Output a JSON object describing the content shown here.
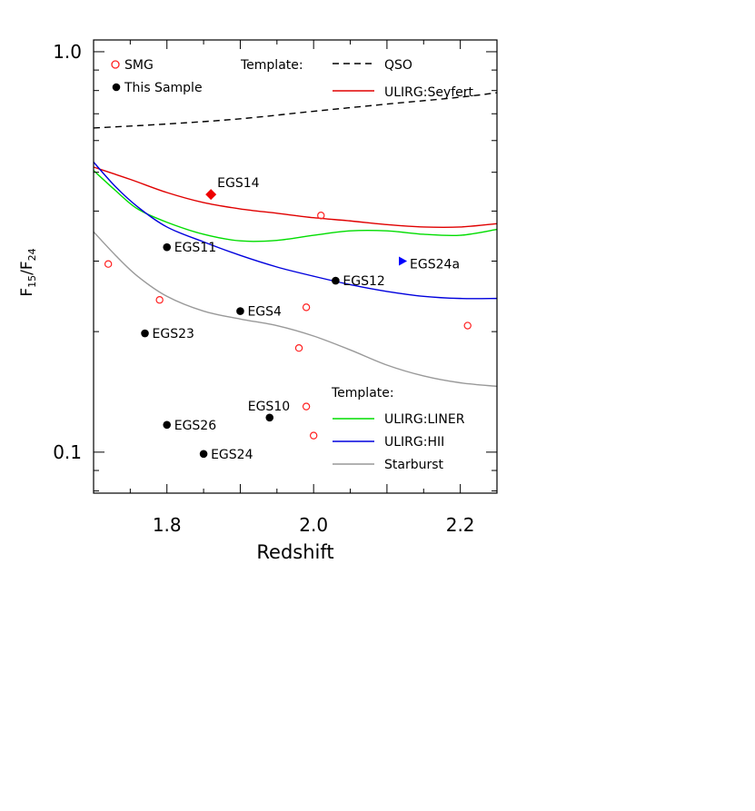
{
  "chart_data": {
    "type": "scatter",
    "xlabel": "Redshift",
    "ylabel": {
      "base": "F",
      "num_sub": "15",
      "den_base": "F",
      "den_sub": "24"
    },
    "xlim": [
      1.7,
      2.25
    ],
    "ylim": [
      0.079,
      1.07
    ],
    "yscale": "log",
    "x_ticks": [
      {
        "value": 1.8,
        "label": "1.8"
      },
      {
        "value": 2.0,
        "label": "2.0"
      },
      {
        "value": 2.2,
        "label": "2.2"
      }
    ],
    "y_ticks": [
      {
        "value": 1.0,
        "label": "1.0"
      },
      {
        "value": 0.1,
        "label": "0.1"
      }
    ],
    "colors": {
      "smg": "#ff2020",
      "sample": "#000000",
      "qso": "#000000",
      "seyfert": "#e00000",
      "liner": "#00dd00",
      "hii": "#0000dd",
      "starburst": "#999999",
      "egs24a": "#0000ff",
      "egs14": "#ee0000"
    },
    "legend_top": {
      "smg_label": "SMG",
      "sample_label": "This Sample",
      "template_title": "Template:",
      "qso_label": "QSO",
      "seyfert_label": "ULIRG:Seyfert"
    },
    "legend_bottom": {
      "template_title": "Template:",
      "liner_label": "ULIRG:LINER",
      "hii_label": "ULIRG:HII",
      "starburst_label": "Starburst"
    },
    "sample_points": [
      {
        "name": "EGS11",
        "x": 1.8,
        "y": 0.325
      },
      {
        "name": "EGS12",
        "x": 2.03,
        "y": 0.268
      },
      {
        "name": "EGS4",
        "x": 1.9,
        "y": 0.225
      },
      {
        "name": "EGS23",
        "x": 1.77,
        "y": 0.198
      },
      {
        "name": "EGS10",
        "x": 1.94,
        "y": 0.122
      },
      {
        "name": "EGS26",
        "x": 1.8,
        "y": 0.117
      },
      {
        "name": "EGS24",
        "x": 1.85,
        "y": 0.099
      }
    ],
    "egs14": {
      "name": "EGS14",
      "x": 1.86,
      "y": 0.44
    },
    "egs24a": {
      "name": "EGS24a",
      "x": 2.12,
      "y": 0.3
    },
    "smg_points": [
      {
        "x": 1.72,
        "y": 0.295
      },
      {
        "x": 1.79,
        "y": 0.24
      },
      {
        "x": 1.98,
        "y": 0.182
      },
      {
        "x": 1.99,
        "y": 0.23
      },
      {
        "x": 2.01,
        "y": 0.39
      },
      {
        "x": 1.99,
        "y": 0.13
      },
      {
        "x": 2.0,
        "y": 0.11
      },
      {
        "x": 2.21,
        "y": 0.207
      }
    ],
    "templates": {
      "qso": {
        "x": [
          1.7,
          1.8,
          1.9,
          2.0,
          2.1,
          2.2,
          2.25
        ],
        "y": [
          0.645,
          0.66,
          0.68,
          0.71,
          0.74,
          0.77,
          0.79
        ]
      },
      "seyfert": {
        "x": [
          1.7,
          1.75,
          1.8,
          1.85,
          1.9,
          1.95,
          2.0,
          2.05,
          2.1,
          2.15,
          2.2,
          2.25
        ],
        "y": [
          0.515,
          0.48,
          0.445,
          0.42,
          0.405,
          0.395,
          0.385,
          0.378,
          0.37,
          0.365,
          0.365,
          0.372
        ]
      },
      "liner": {
        "x": [
          1.7,
          1.73,
          1.76,
          1.8,
          1.85,
          1.9,
          1.95,
          2.0,
          2.05,
          2.1,
          2.15,
          2.2,
          2.25
        ],
        "y": [
          0.505,
          0.45,
          0.405,
          0.375,
          0.35,
          0.337,
          0.338,
          0.348,
          0.357,
          0.357,
          0.35,
          0.348,
          0.36
        ]
      },
      "hii": {
        "x": [
          1.7,
          1.73,
          1.76,
          1.8,
          1.85,
          1.9,
          1.95,
          2.0,
          2.05,
          2.1,
          2.15,
          2.2,
          2.25
        ],
        "y": [
          0.53,
          0.46,
          0.41,
          0.365,
          0.335,
          0.31,
          0.29,
          0.275,
          0.262,
          0.252,
          0.245,
          0.242,
          0.242
        ]
      },
      "starburst": {
        "x": [
          1.7,
          1.73,
          1.76,
          1.8,
          1.85,
          1.9,
          1.95,
          2.0,
          2.05,
          2.1,
          2.15,
          2.2,
          2.25
        ],
        "y": [
          0.355,
          0.31,
          0.275,
          0.245,
          0.225,
          0.215,
          0.207,
          0.195,
          0.18,
          0.165,
          0.155,
          0.149,
          0.146
        ]
      }
    }
  }
}
